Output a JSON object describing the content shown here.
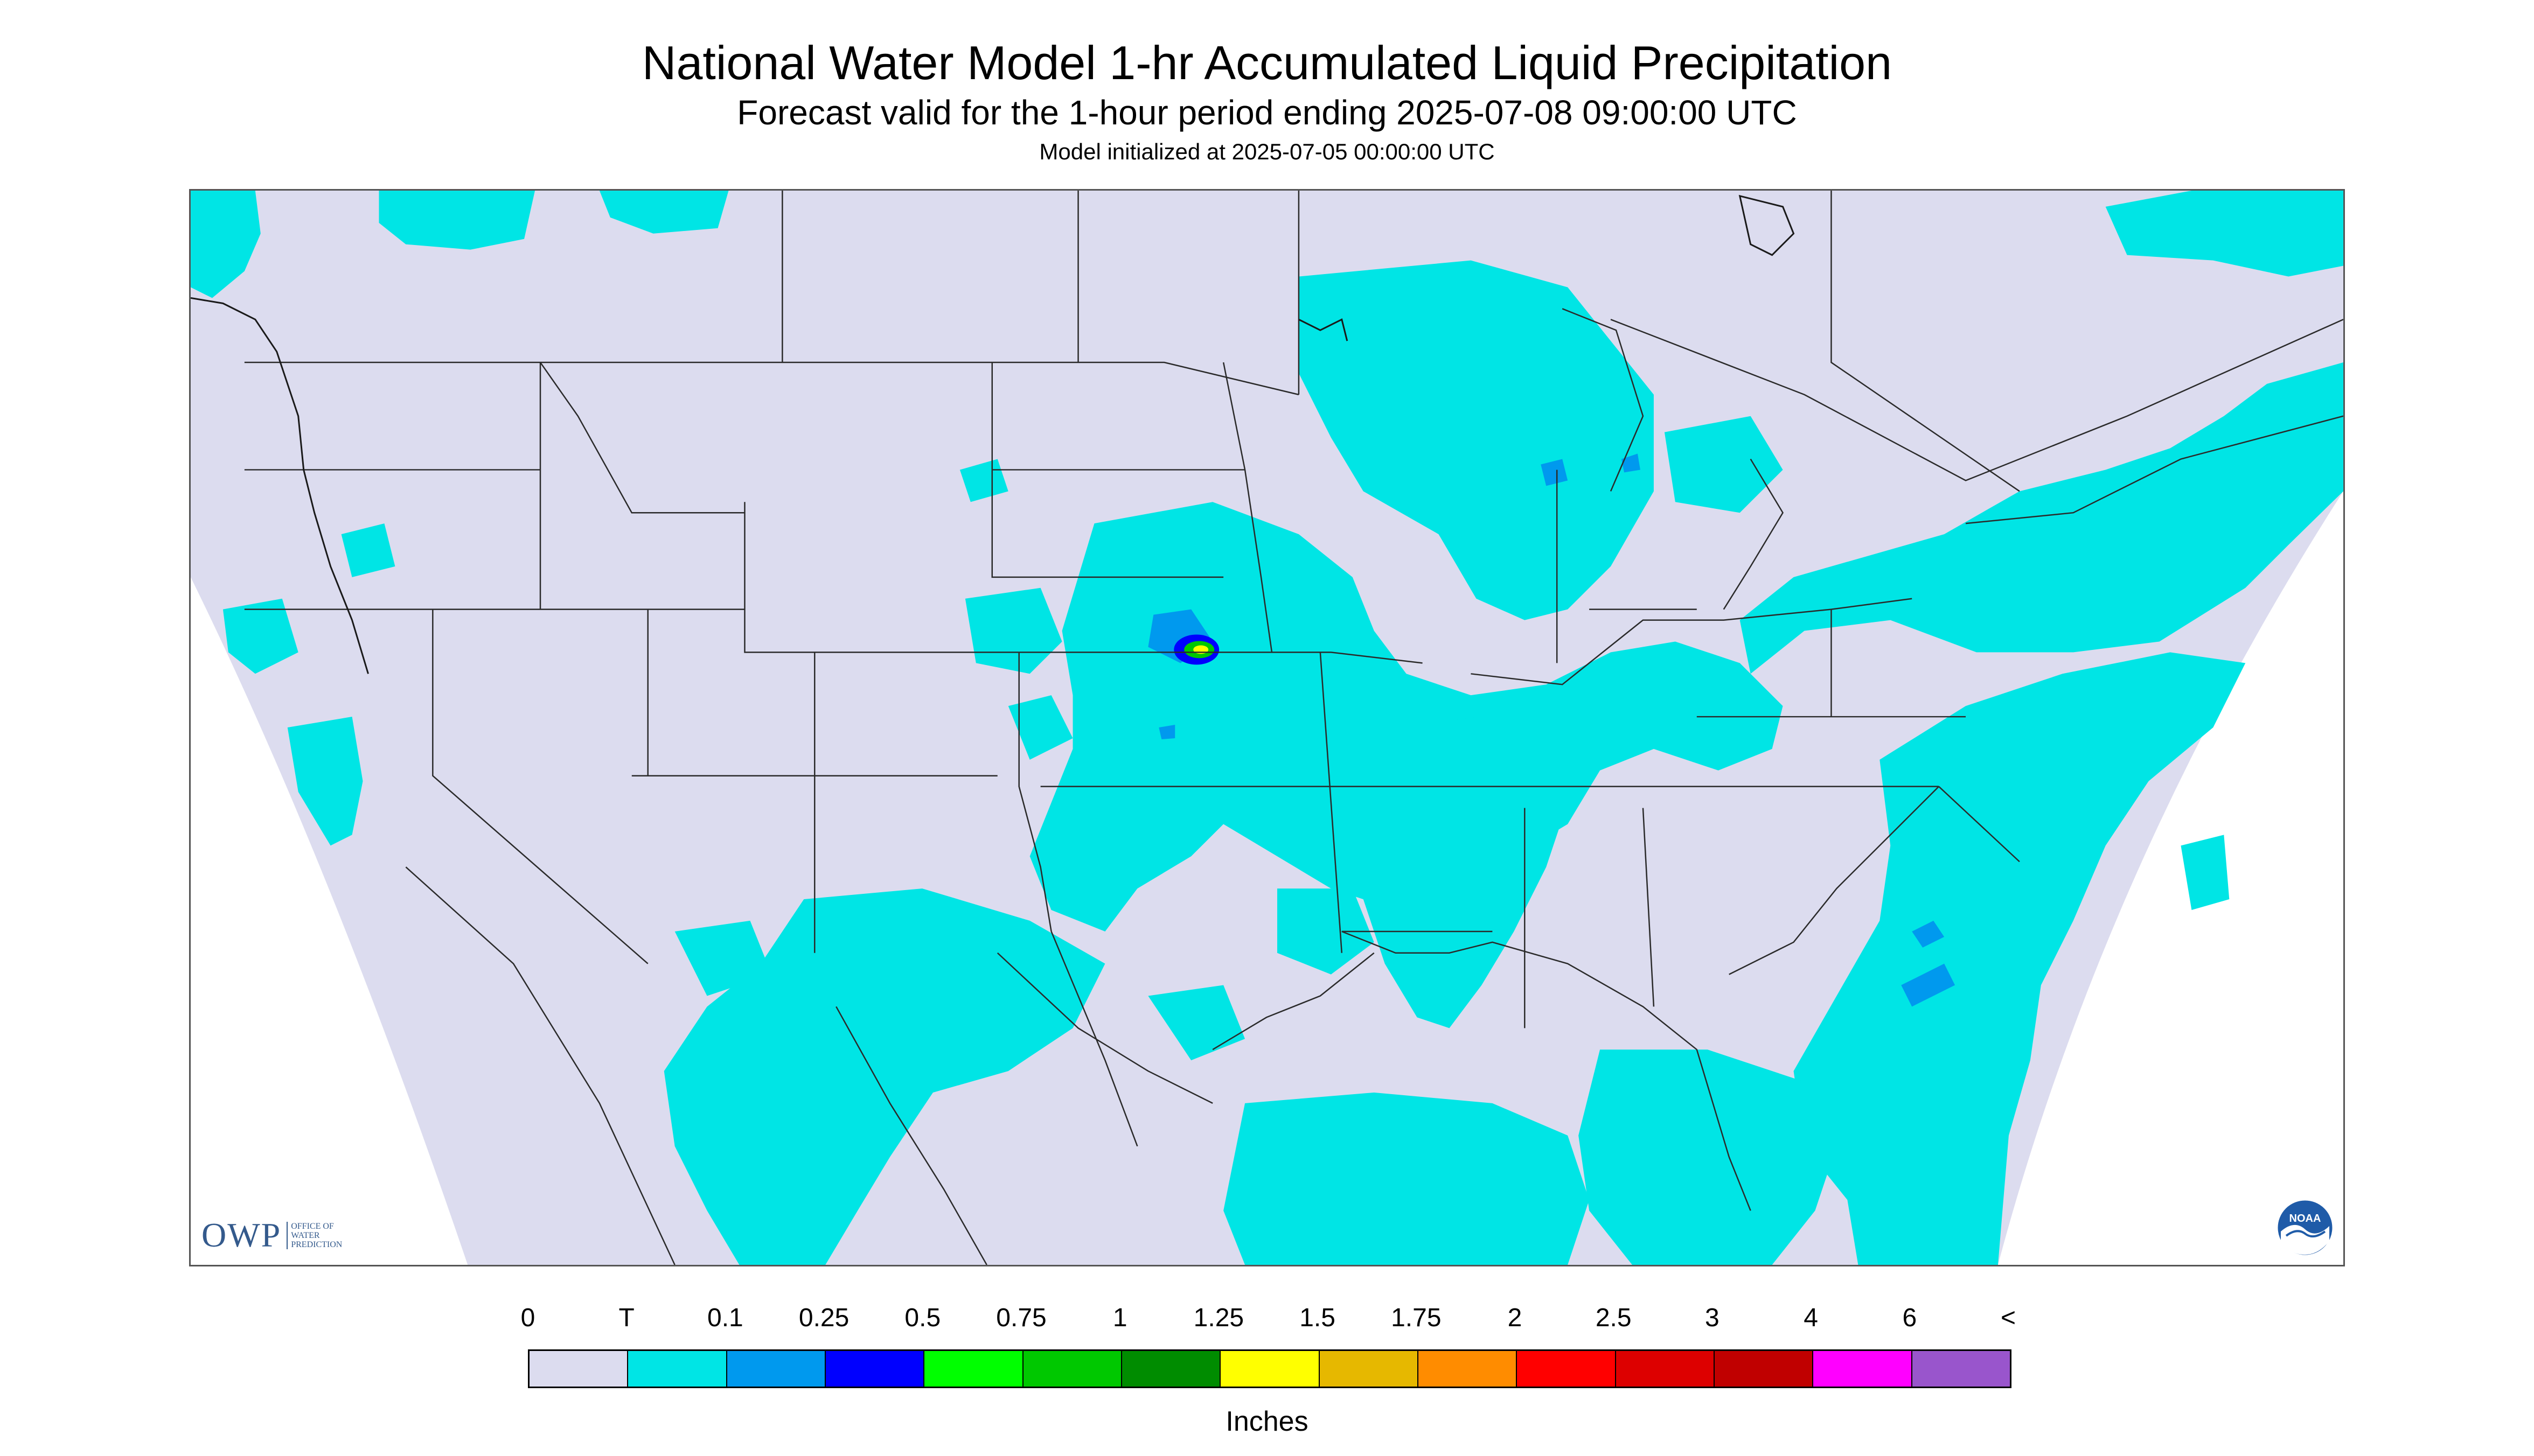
{
  "header": {
    "title": "National Water Model 1-hr Accumulated Liquid Precipitation",
    "subtitle": "Forecast valid for the 1-hour period ending 2025-07-08 09:00:00 UTC",
    "init_line": "Model initialized at 2025-07-05 00:00:00 UTC"
  },
  "logos": {
    "owp_mark": "OWP",
    "owp_sub": "OFFICE OF WATER PREDICTION",
    "noaa": "NOAA"
  },
  "colors": {
    "map_background": "#dcdcef",
    "trace": "#00e5e5",
    "outline": "#2a2a2a"
  },
  "legend": {
    "labels": [
      "0",
      "T",
      "0.1",
      "0.25",
      "0.5",
      "0.75",
      "1",
      "1.25",
      "1.5",
      "1.75",
      "2",
      "2.5",
      "3",
      "4",
      "6",
      "<"
    ],
    "colors": [
      "#dcdcef",
      "#00e5e5",
      "#0099ee",
      "#0000ff",
      "#00ff00",
      "#00c800",
      "#008c00",
      "#ffff00",
      "#e6b800",
      "#ff8c00",
      "#ff0000",
      "#dd0000",
      "#c00000",
      "#ff00ff",
      "#9955cc"
    ],
    "units": "Inches"
  }
}
